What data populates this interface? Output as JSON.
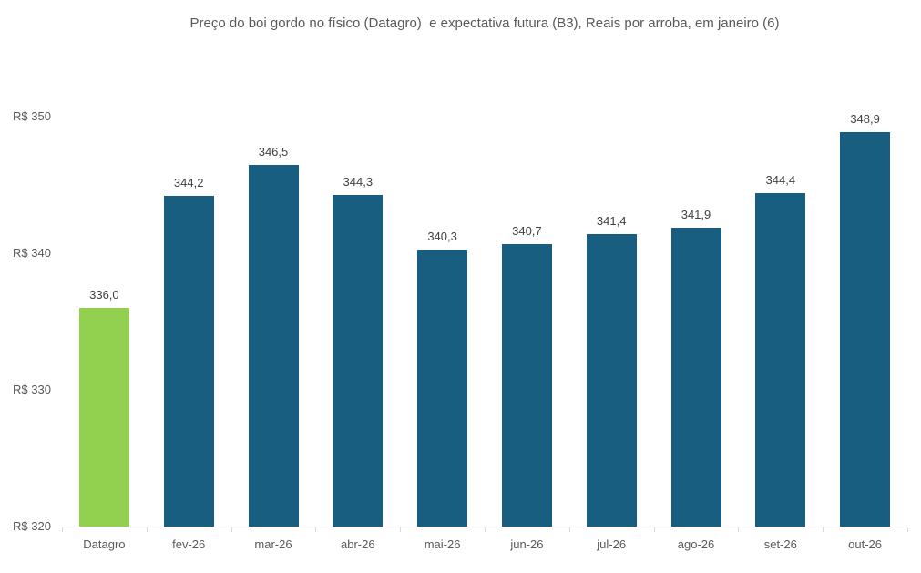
{
  "chart_data": {
    "type": "bar",
    "title": "Preço do boi gordo no físico (Datagro)  e expectativa futura (B3), Reais por arroba, em janeiro (6)",
    "categories": [
      "Datagro",
      "fev-26",
      "mar-26",
      "abr-26",
      "mai-26",
      "jun-26",
      "jul-26",
      "ago-26",
      "set-26",
      "out-26"
    ],
    "values": [
      336.0,
      344.2,
      346.5,
      344.3,
      340.3,
      340.7,
      341.4,
      341.9,
      344.4,
      348.9
    ],
    "value_labels": [
      "336,0",
      "344,2",
      "346,5",
      "344,3",
      "340,3",
      "340,7",
      "341,4",
      "341,9",
      "344,4",
      "348,9"
    ],
    "yticks": [
      {
        "value": 320,
        "label": "R$ 320"
      },
      {
        "value": 330,
        "label": "R$ 330"
      },
      {
        "value": 340,
        "label": "R$ 340"
      },
      {
        "value": 350,
        "label": "R$ 350"
      }
    ],
    "ylim": [
      320,
      352
    ],
    "xlabel": "",
    "ylabel": "",
    "grid": false,
    "legend": null,
    "highlight_index": 0,
    "colors": {
      "highlight_bar": "#92D050",
      "default_bar": "#175E80",
      "axis_line": "#D9D9D9",
      "title_text": "#595959",
      "axis_text": "#595959",
      "data_label_text": "#404040",
      "background": "#FFFFFF"
    }
  }
}
